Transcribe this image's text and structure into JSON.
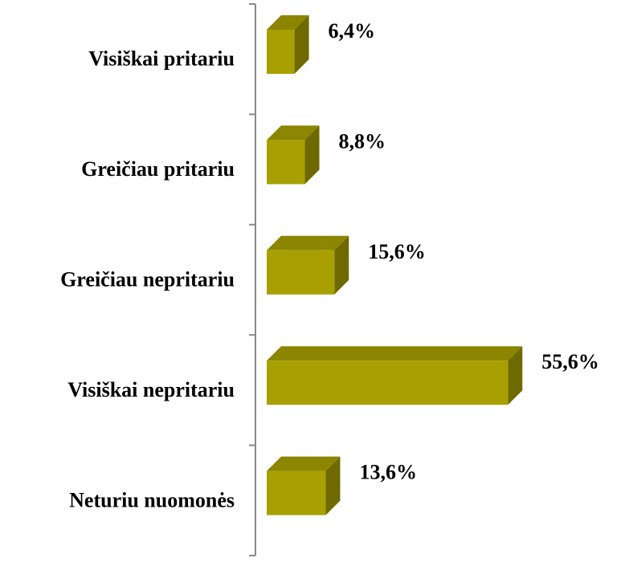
{
  "chart_data": {
    "type": "bar3d",
    "categories": [
      "Visiškai pritariu",
      "Greičiau pritariu",
      "Greičiau nepritariu",
      "Visiškai nepritariu",
      "Neturiu nuomonės"
    ],
    "values": [
      6.4,
      8.8,
      15.6,
      55.6,
      13.6
    ],
    "value_labels": [
      "6,4%",
      "8,8%",
      "15,6%",
      "55,6%",
      "13,6%"
    ],
    "color": "#a8a000"
  }
}
